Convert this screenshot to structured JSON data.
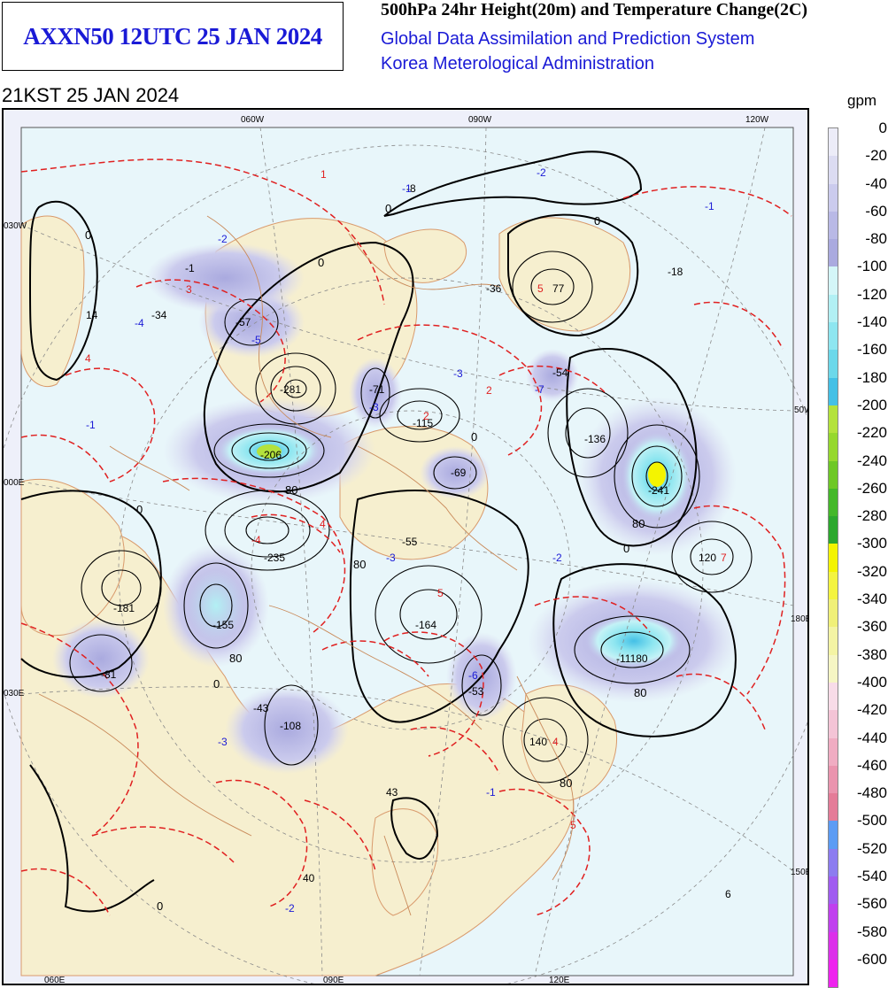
{
  "header": {
    "chart_id": "AXXN50 12UTC 25 JAN 2024",
    "product": "500hPa 24hr Height(20m) and Temperature Change(2C)",
    "system": "Global Data Assimilation and Prediction System",
    "agency": "Korea Meterological Administration",
    "valid_time": "21KST 25 JAN 2024"
  },
  "legend": {
    "unit": "gpm",
    "levels": [
      "0",
      "-20",
      "-40",
      "-60",
      "-80",
      "-100",
      "-120",
      "-140",
      "-160",
      "-180",
      "-200",
      "-220",
      "-240",
      "-260",
      "-280",
      "-300",
      "-320",
      "-340",
      "-360",
      "-380",
      "-400",
      "-420",
      "-440",
      "-460",
      "-480",
      "-500",
      "-520",
      "-540",
      "-560",
      "-580",
      "-600"
    ],
    "colors": [
      "#ececf8",
      "#dcdcf2",
      "#cbcbed",
      "#b9b9e6",
      "#aaaadf",
      "#d4f6f8",
      "#b2f0f4",
      "#8ee6f0",
      "#6cd8ea",
      "#44c0e6",
      "#b4e23c",
      "#96d82e",
      "#6ec826",
      "#44b82a",
      "#2ca82e",
      "#f4f400",
      "#f4f440",
      "#f0f078",
      "#f4f4a4",
      "#f6f6c4",
      "#f8dce8",
      "#f4c4d6",
      "#f0acc2",
      "#ea94ae",
      "#e47c98",
      "#5c9cf4",
      "#8c7cf0",
      "#a05cf0",
      "#c040ee",
      "#dc30ea",
      "#ee22ee"
    ]
  },
  "map": {
    "meridian_labels": [
      "060W",
      "090W",
      "120W",
      "030W",
      "060E",
      "090E",
      "120E"
    ],
    "parallel_labels": [
      "000E",
      "030E",
      "50W",
      "180E",
      "150E"
    ],
    "height_change_labels": [
      "-8",
      "-57",
      "-281",
      "-71",
      "-115",
      "-36",
      "77",
      "-54",
      "-18",
      "-1",
      "14",
      "-34",
      "-206",
      "-69",
      "-235",
      "-55",
      "-136",
      "-241",
      "120",
      "-181",
      "-155",
      "-164",
      "-53",
      "-81",
      "-43",
      "-108",
      "-11180",
      "140",
      "43",
      "40",
      "6"
    ],
    "temp_change_labels": [
      "-1",
      "-2",
      "-2",
      "-1",
      "3",
      "1",
      "-4",
      "4",
      "-5",
      "2",
      "-3",
      "-7",
      "5",
      "2",
      "-1",
      "-3",
      "-2",
      "4",
      "-4",
      "7",
      "5",
      "-3",
      "-6",
      "-1",
      "-3",
      "5",
      "-2",
      "4"
    ],
    "contour_labels": [
      "0",
      "0",
      "0",
      "0",
      "0",
      "0",
      "0",
      "80",
      "80",
      "80",
      "80",
      "80",
      "80",
      "0",
      "0"
    ],
    "high_centers": [
      "-281",
      "-115",
      "77",
      "-235",
      "-136",
      "120",
      "-181",
      "-155",
      "-164",
      "140"
    ],
    "low_centers": [
      "-206",
      "-241",
      "-11180",
      "-81",
      "-108",
      "-69",
      "-55",
      "-53"
    ]
  }
}
